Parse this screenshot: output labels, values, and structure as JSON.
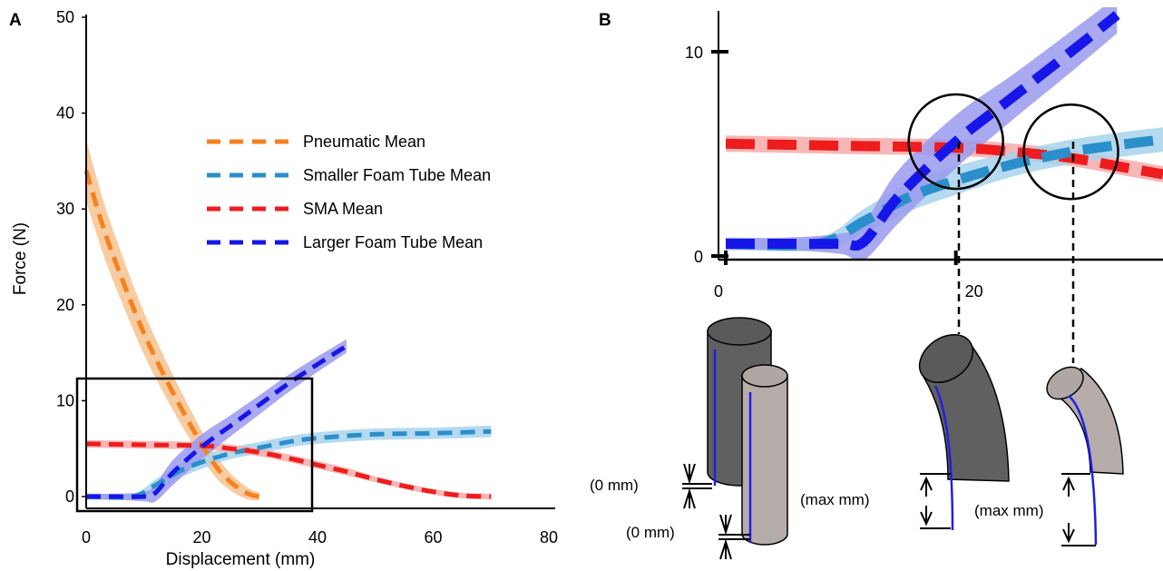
{
  "panel_a_label": "A",
  "panel_b_label": "B",
  "chart_data": [
    {
      "type": "line",
      "panel": "A",
      "xlabel": "Displacement (mm)",
      "ylabel": "Force (N)",
      "xlim": [
        0,
        80
      ],
      "ylim": [
        0,
        50
      ],
      "xticks": [
        "0",
        "20",
        "40",
        "60",
        "80"
      ],
      "yticks": [
        "0",
        "10",
        "20",
        "30",
        "40",
        "50"
      ],
      "grid": false,
      "legend_position": "upper-center",
      "series": [
        {
          "name": "Pneumatic Mean",
          "color": "#f5811f",
          "band_color": "#f7c28f",
          "x": [
            0,
            3,
            6,
            10,
            14,
            18,
            22,
            25,
            28,
            30
          ],
          "y": [
            34,
            28,
            23,
            17,
            12,
            7.5,
            3.5,
            1.5,
            0.3,
            0
          ],
          "band": [
            3.2,
            2.8,
            2.5,
            2.2,
            1.9,
            1.6,
            1.2,
            0.9,
            0.6,
            0.4
          ]
        },
        {
          "name": "Smaller Foam Tube Mean",
          "color": "#2a8fcb",
          "band_color": "#a8d4ec",
          "x": [
            0,
            8,
            12,
            16,
            20,
            25,
            30,
            35,
            40,
            50,
            60,
            70
          ],
          "y": [
            0,
            0,
            1.2,
            2.6,
            3.6,
            4.5,
            5.1,
            5.7,
            6.1,
            6.5,
            6.6,
            6.8
          ],
          "band": [
            0.3,
            0.3,
            0.6,
            0.7,
            0.7,
            0.6,
            0.6,
            0.6,
            0.6,
            0.6,
            0.6,
            0.6
          ]
        },
        {
          "name": "SMA Mean",
          "color": "#ee1c1c",
          "band_color": "#f7aaaa",
          "x": [
            0,
            10,
            20,
            25,
            30,
            35,
            40,
            45,
            50,
            55,
            60,
            65,
            70
          ],
          "y": [
            5.5,
            5.4,
            5.3,
            5.0,
            4.6,
            4.0,
            3.3,
            2.6,
            1.8,
            1.1,
            0.5,
            0.1,
            0
          ],
          "band": [
            0.4,
            0.4,
            0.4,
            0.4,
            0.4,
            0.4,
            0.4,
            0.4,
            0.3,
            0.3,
            0.3,
            0.3,
            0.3
          ]
        },
        {
          "name": "Larger Foam Tube Mean",
          "color": "#1616e8",
          "band_color": "#9a9aee",
          "x": [
            0,
            5,
            10,
            12,
            15,
            20,
            25,
            30,
            35,
            40,
            45
          ],
          "y": [
            0,
            0,
            0,
            0.4,
            2.5,
            5.2,
            7.4,
            9.6,
            11.8,
            13.8,
            15.7
          ],
          "band": [
            0.3,
            0.3,
            0.5,
            0.9,
            1.3,
            1.3,
            1.1,
            1.0,
            0.9,
            0.8,
            0.7
          ]
        }
      ]
    },
    {
      "type": "line",
      "panel": "B",
      "xlim": [
        0,
        38
      ],
      "ylim": [
        0,
        12
      ],
      "xticks": [
        "0",
        "20"
      ],
      "yticks": [
        "0",
        "10"
      ],
      "grid": false,
      "series": [
        {
          "color": "#ee1c1c",
          "band_color": "#f7aaaa",
          "x": [
            0,
            10,
            20,
            25,
            30,
            35,
            38
          ],
          "y": [
            5.5,
            5.4,
            5.3,
            5.1,
            4.8,
            4.3,
            4.0
          ],
          "band": [
            0.4,
            0.4,
            0.4,
            0.4,
            0.4,
            0.4,
            0.4
          ]
        },
        {
          "color": "#2a8fcb",
          "band_color": "#a8d4ec",
          "x": [
            0,
            8,
            12,
            16,
            20,
            25,
            30,
            35,
            38
          ],
          "y": [
            0.6,
            0.6,
            1.7,
            2.9,
            3.7,
            4.5,
            5.1,
            5.5,
            5.7
          ],
          "band": [
            0.3,
            0.3,
            0.6,
            0.7,
            0.7,
            0.6,
            0.6,
            0.6,
            0.6
          ]
        },
        {
          "color": "#1616e8",
          "band_color": "#9a9aee",
          "x": [
            0,
            5,
            10,
            12,
            15,
            20,
            25,
            30,
            34
          ],
          "y": [
            0.6,
            0.6,
            0.6,
            0.7,
            2.9,
            5.6,
            7.8,
            10.0,
            11.8
          ],
          "band": [
            0.3,
            0.3,
            0.5,
            0.9,
            1.3,
            1.3,
            1.1,
            1.0,
            0.9
          ]
        }
      ],
      "circles": [
        {
          "x": 20,
          "y": 5.6
        },
        {
          "x": 30,
          "y": 5.1
        }
      ]
    }
  ],
  "annotations": {
    "zero_mm_upper": "(0 mm)",
    "zero_mm_lower": "(0 mm)",
    "max_mm_left": "(max mm)",
    "max_mm_right": "(max mm)"
  },
  "colors": {
    "dark_tube": "#606060",
    "light_tube": "#b6acaa",
    "wire": "#1f1fe6"
  }
}
